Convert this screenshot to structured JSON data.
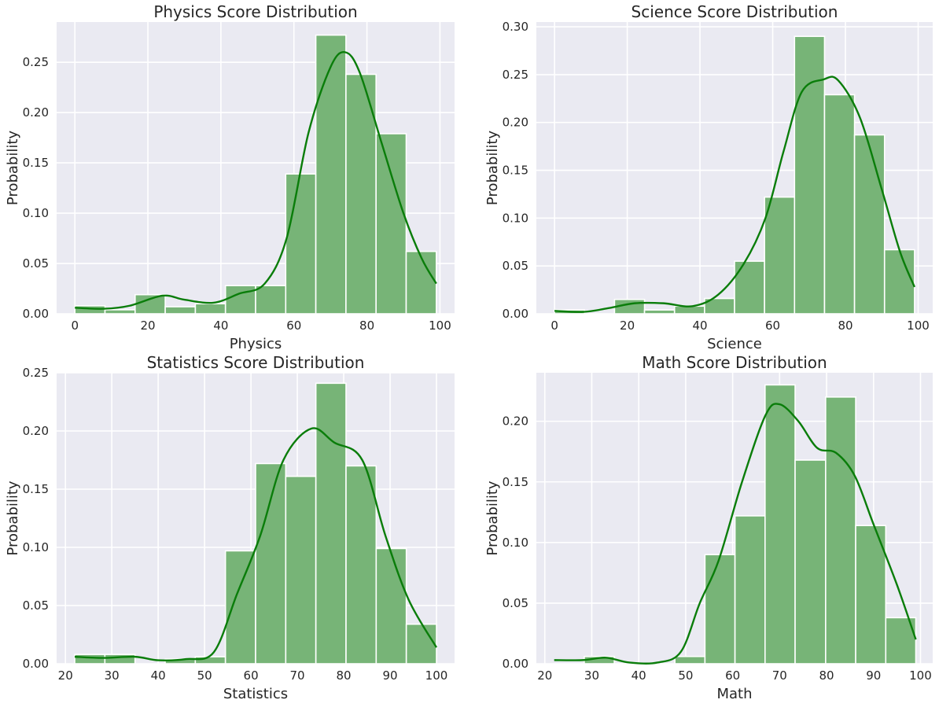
{
  "colors": {
    "panel_bg": "#eaeaf2",
    "bar": "#77b477",
    "kde": "#0a7d0a",
    "grid": "#ffffff",
    "text": "#262626"
  },
  "chart_data": [
    {
      "type": "bar",
      "title": "Physics Score Distribution",
      "xlabel": "Physics",
      "ylabel": "Probability",
      "xlim": [
        -5,
        104
      ],
      "ylim": [
        0,
        0.29
      ],
      "xticks": [
        0,
        20,
        40,
        60,
        80,
        100
      ],
      "yticks": [
        0.0,
        0.05,
        0.1,
        0.15,
        0.2,
        0.25
      ],
      "ytick_labels": [
        "0.00",
        "0.05",
        "0.10",
        "0.15",
        "0.20",
        "0.25"
      ],
      "grid": true,
      "bin_edges": [
        0,
        8.25,
        16.5,
        24.75,
        33,
        41.25,
        49.5,
        57.75,
        66,
        74.25,
        82.5,
        90.75,
        99
      ],
      "values": [
        0.008,
        0.004,
        0.019,
        0.007,
        0.01,
        0.028,
        0.028,
        0.139,
        0.277,
        0.238,
        0.179,
        0.062
      ],
      "kde": [
        [
          0,
          0.006
        ],
        [
          8,
          0.005
        ],
        [
          15,
          0.008
        ],
        [
          24,
          0.018
        ],
        [
          30,
          0.014
        ],
        [
          38,
          0.011
        ],
        [
          45,
          0.02
        ],
        [
          52,
          0.03
        ],
        [
          58,
          0.075
        ],
        [
          64,
          0.18
        ],
        [
          70,
          0.245
        ],
        [
          74,
          0.26
        ],
        [
          78,
          0.24
        ],
        [
          84,
          0.17
        ],
        [
          90,
          0.1
        ],
        [
          95,
          0.055
        ],
        [
          99,
          0.03
        ]
      ]
    },
    {
      "type": "bar",
      "title": "Science Score Distribution",
      "xlabel": "Science",
      "ylabel": "Probability",
      "xlim": [
        -5,
        104
      ],
      "ylim": [
        0,
        0.305
      ],
      "xticks": [
        0,
        20,
        40,
        60,
        80,
        100
      ],
      "yticks": [
        0.0,
        0.05,
        0.1,
        0.15,
        0.2,
        0.25,
        0.3
      ],
      "ytick_labels": [
        "0.00",
        "0.05",
        "0.10",
        "0.15",
        "0.20",
        "0.25",
        "0.30"
      ],
      "grid": true,
      "bin_edges": [
        0,
        8.25,
        16.5,
        24.75,
        33,
        41.25,
        49.5,
        57.75,
        66,
        74.25,
        82.5,
        90.75,
        99
      ],
      "values": [
        0.004,
        0.0,
        0.015,
        0.004,
        0.008,
        0.016,
        0.055,
        0.122,
        0.29,
        0.229,
        0.187,
        0.067
      ],
      "kde": [
        [
          0,
          0.003
        ],
        [
          8,
          0.002
        ],
        [
          15,
          0.006
        ],
        [
          22,
          0.011
        ],
        [
          30,
          0.011
        ],
        [
          38,
          0.008
        ],
        [
          45,
          0.02
        ],
        [
          52,
          0.052
        ],
        [
          58,
          0.1
        ],
        [
          63,
          0.17
        ],
        [
          68,
          0.232
        ],
        [
          74,
          0.245
        ],
        [
          78,
          0.244
        ],
        [
          84,
          0.205
        ],
        [
          90,
          0.13
        ],
        [
          95,
          0.065
        ],
        [
          99,
          0.028
        ]
      ]
    },
    {
      "type": "bar",
      "title": "Statistics Score Distribution",
      "xlabel": "Statistics",
      "ylabel": "Probability",
      "xlim": [
        18.1,
        103.9
      ],
      "ylim": [
        0,
        0.25
      ],
      "xticks": [
        20,
        30,
        40,
        50,
        60,
        70,
        80,
        90,
        100
      ],
      "yticks": [
        0.0,
        0.05,
        0.1,
        0.15,
        0.2,
        0.25
      ],
      "ytick_labels": [
        "0.00",
        "0.05",
        "0.10",
        "0.15",
        "0.20",
        "0.25"
      ],
      "grid": true,
      "bin_edges": [
        22,
        28.5,
        35,
        41.5,
        48,
        54.5,
        61,
        67.5,
        74,
        80.5,
        87,
        93.5,
        100
      ],
      "values": [
        0.008,
        0.008,
        0.0,
        0.004,
        0.006,
        0.097,
        0.172,
        0.161,
        0.241,
        0.17,
        0.099,
        0.034
      ],
      "kde": [
        [
          22,
          0.006
        ],
        [
          28,
          0.005
        ],
        [
          35,
          0.006
        ],
        [
          40,
          0.003
        ],
        [
          46,
          0.004
        ],
        [
          52,
          0.01
        ],
        [
          57,
          0.06
        ],
        [
          62,
          0.11
        ],
        [
          67,
          0.175
        ],
        [
          73,
          0.202
        ],
        [
          78,
          0.19
        ],
        [
          84,
          0.175
        ],
        [
          89,
          0.11
        ],
        [
          94,
          0.055
        ],
        [
          100,
          0.014
        ]
      ]
    },
    {
      "type": "bar",
      "title": "Math Score Distribution",
      "xlabel": "Math",
      "ylabel": "Probability",
      "xlim": [
        18.2,
        102.6
      ],
      "ylim": [
        0,
        0.24
      ],
      "xticks": [
        20,
        30,
        40,
        50,
        60,
        70,
        80,
        90,
        100
      ],
      "yticks": [
        0.0,
        0.05,
        0.1,
        0.15,
        0.2
      ],
      "ytick_labels": [
        "0.00",
        "0.05",
        "0.10",
        "0.15",
        "0.20"
      ],
      "grid": true,
      "bin_edges": [
        22,
        28.4,
        34.8,
        41.3,
        47.7,
        54.1,
        60.5,
        66.9,
        73.3,
        79.8,
        86.2,
        92.6,
        99
      ],
      "values": [
        0.0,
        0.006,
        0.0,
        0.0,
        0.006,
        0.09,
        0.122,
        0.23,
        0.168,
        0.22,
        0.114,
        0.038
      ],
      "kde": [
        [
          22,
          0.003
        ],
        [
          28,
          0.003
        ],
        [
          33,
          0.005
        ],
        [
          38,
          0.001
        ],
        [
          44,
          0.001
        ],
        [
          49,
          0.01
        ],
        [
          53,
          0.05
        ],
        [
          57,
          0.085
        ],
        [
          62,
          0.15
        ],
        [
          67,
          0.205
        ],
        [
          70,
          0.214
        ],
        [
          74,
          0.2
        ],
        [
          78,
          0.178
        ],
        [
          82,
          0.174
        ],
        [
          86,
          0.155
        ],
        [
          90,
          0.115
        ],
        [
          95,
          0.065
        ],
        [
          99,
          0.02
        ]
      ]
    }
  ]
}
